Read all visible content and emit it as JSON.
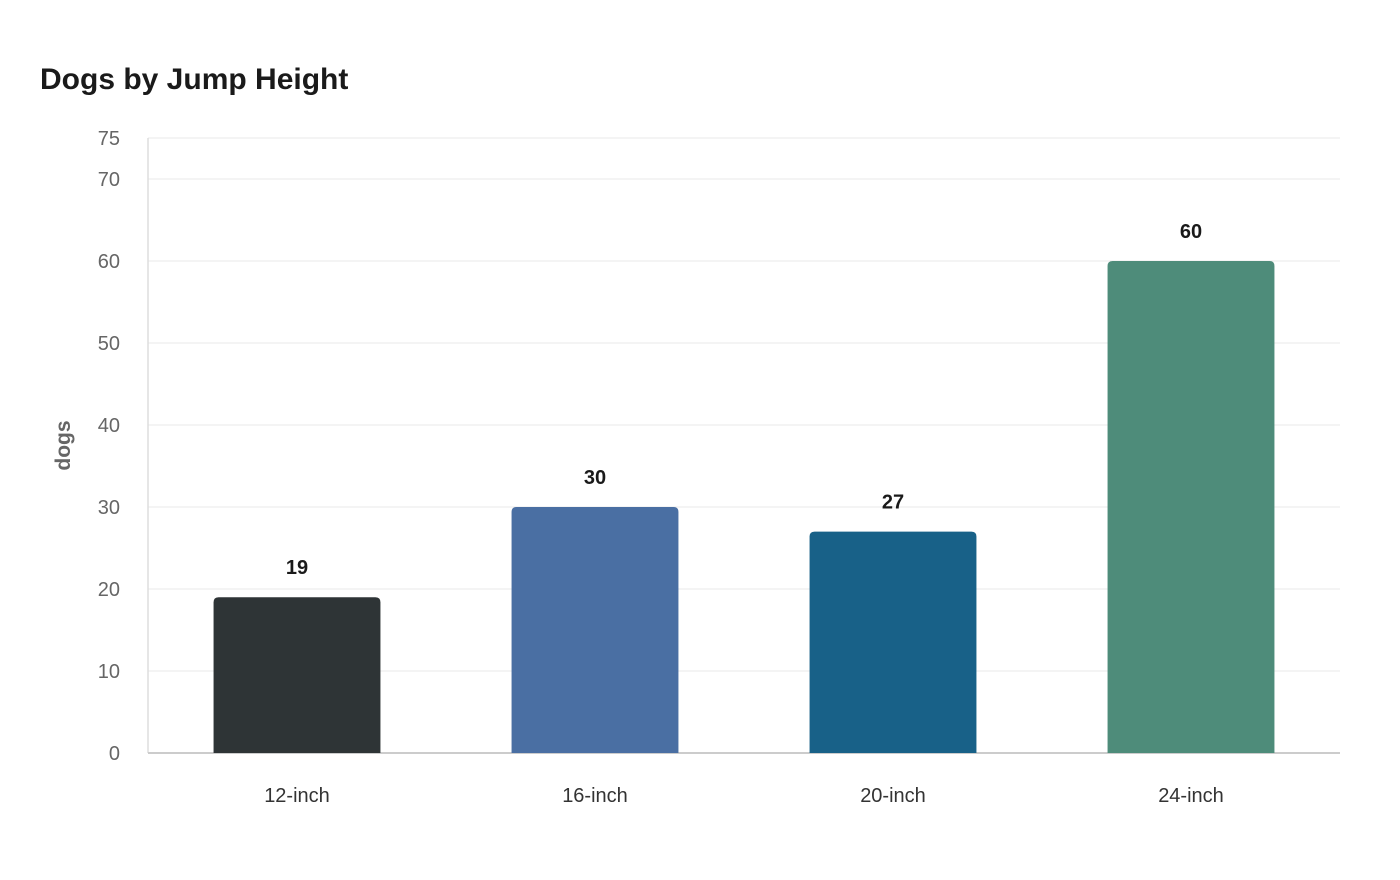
{
  "chart_data": {
    "type": "bar",
    "title": "Dogs by Jump Height",
    "xlabel": "",
    "ylabel": "dogs",
    "categories": [
      "12-inch",
      "16-inch",
      "20-inch",
      "24-inch"
    ],
    "values": [
      19,
      30,
      27,
      60
    ],
    "value_labels": [
      "19",
      "30",
      "27",
      "60"
    ],
    "colors": [
      "#2e3436",
      "#4a6fa3",
      "#186188",
      "#4e8c7a"
    ],
    "ylim": [
      0,
      75
    ],
    "yticks": [
      0,
      10,
      20,
      30,
      40,
      50,
      60,
      70,
      75
    ],
    "ytick_labels": [
      "0",
      "10",
      "20",
      "30",
      "40",
      "50",
      "60",
      "70",
      "75"
    ],
    "grid": true,
    "legend": "none"
  }
}
